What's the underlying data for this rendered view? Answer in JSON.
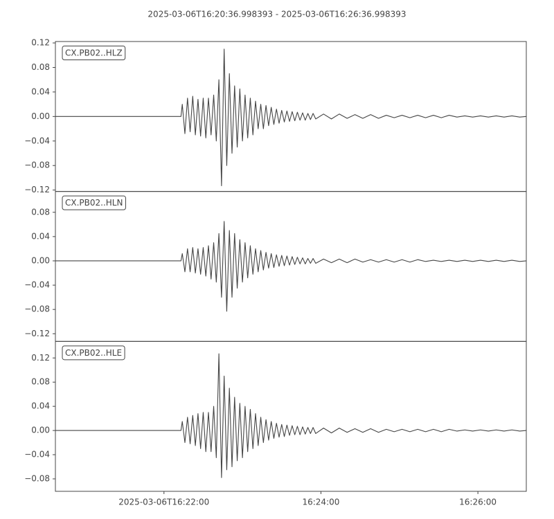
{
  "chart_data": {
    "type": "line",
    "title": "2025-03-06T16:20:36.998393  -  2025-03-06T16:26:36.998393",
    "x": [
      0,
      96,
      97,
      99,
      101,
      103,
      105,
      107,
      109,
      111,
      113,
      115,
      117,
      119,
      121,
      123,
      125,
      127,
      129,
      131,
      133,
      135,
      137,
      139,
      141,
      143,
      145,
      147,
      149,
      151,
      153,
      155,
      157,
      159,
      161,
      163,
      165,
      167,
      169,
      171,
      173,
      175,
      177,
      179,
      181,
      183,
      185,
      187,
      189,
      191,
      193,
      195,
      197,
      199,
      205,
      211,
      217,
      223,
      229,
      235,
      241,
      247,
      253,
      259,
      265,
      271,
      277,
      283,
      289,
      295,
      301,
      307,
      313,
      319,
      325,
      331,
      337,
      343,
      349,
      355,
      360
    ],
    "xlim": [
      0,
      360
    ],
    "xticks": [
      {
        "value": 83.0016,
        "label": "2025-03-06T16:22:00"
      },
      {
        "value": 203.0016,
        "label": "16:24:00"
      },
      {
        "value": 323.0016,
        "label": "16:26:00"
      }
    ],
    "series": [
      {
        "name": "CX.PB02..HLZ",
        "color": "#444444",
        "ylim": [
          -0.1223,
          0.1223
        ],
        "yticks": [
          {
            "value": 0.12,
            "label": "0.12"
          },
          {
            "value": 0.08,
            "label": "0.08"
          },
          {
            "value": 0.04,
            "label": "0.04"
          },
          {
            "value": 0,
            "label": "0.00"
          },
          {
            "value": -0.04,
            "label": "−0.04"
          },
          {
            "value": -0.08,
            "label": "−0.08"
          },
          {
            "value": -0.12,
            "label": "−0.12"
          }
        ],
        "values": [
          0,
          0,
          0.02,
          -0.028,
          0.03,
          -0.025,
          0.033,
          -0.03,
          0.028,
          -0.032,
          0.03,
          -0.035,
          0.03,
          -0.03,
          0.035,
          -0.04,
          0.06,
          -0.113,
          0.11,
          -0.08,
          0.07,
          -0.06,
          0.05,
          -0.05,
          0.045,
          -0.04,
          0.035,
          -0.035,
          0.03,
          -0.03,
          0.025,
          -0.02,
          0.02,
          -0.02,
          0.018,
          -0.015,
          0.015,
          -0.013,
          0.012,
          -0.011,
          0.01,
          -0.009,
          0.009,
          -0.008,
          0.008,
          -0.007,
          0.007,
          -0.006,
          0.006,
          -0.006,
          0.005,
          -0.005,
          0.005,
          -0.004,
          0.004,
          -0.004,
          0.004,
          -0.003,
          0.003,
          -0.003,
          0.003,
          -0.003,
          0.002,
          -0.002,
          0.002,
          -0.002,
          0.002,
          -0.002,
          0.002,
          -0.002,
          0.002,
          -0.001,
          0.001,
          -0.001,
          0.001,
          -0.001,
          0.001,
          -0.001,
          0.001,
          -0.001,
          0
        ]
      },
      {
        "name": "CX.PB02..HLN",
        "color": "#444444",
        "ylim": [
          -0.1326,
          0.1143
        ],
        "yticks": [
          {
            "value": 0.08,
            "label": "0.08"
          },
          {
            "value": 0.04,
            "label": "0.04"
          },
          {
            "value": 0,
            "label": "0.00"
          },
          {
            "value": -0.04,
            "label": "−0.04"
          },
          {
            "value": -0.08,
            "label": "−0.08"
          },
          {
            "value": -0.12,
            "label": "−0.12"
          }
        ],
        "values": [
          0,
          0,
          0.012,
          -0.018,
          0.02,
          -0.018,
          0.022,
          -0.02,
          0.02,
          -0.022,
          0.022,
          -0.025,
          0.025,
          -0.03,
          0.03,
          -0.035,
          0.045,
          -0.06,
          0.065,
          -0.083,
          0.05,
          -0.06,
          0.045,
          -0.045,
          0.035,
          -0.035,
          0.03,
          -0.028,
          0.025,
          -0.022,
          0.02,
          -0.018,
          0.017,
          -0.015,
          0.014,
          -0.012,
          0.012,
          -0.011,
          0.01,
          -0.009,
          0.009,
          -0.008,
          0.008,
          -0.007,
          0.007,
          -0.006,
          0.006,
          -0.005,
          0.005,
          -0.005,
          0.004,
          -0.004,
          0.004,
          -0.004,
          0.003,
          -0.003,
          0.003,
          -0.003,
          0.003,
          -0.002,
          0.002,
          -0.002,
          0.002,
          -0.002,
          0.002,
          -0.002,
          0.002,
          -0.001,
          0.001,
          -0.001,
          0.001,
          -0.001,
          0.001,
          -0.001,
          0.001,
          -0.001,
          0.001,
          -0.001,
          0.001,
          -0.001,
          0
        ]
      },
      {
        "name": "CX.PB02..HLE",
        "color": "#444444",
        "ylim": [
          -0.1006,
          0.1474
        ],
        "yticks": [
          {
            "value": 0.12,
            "label": "0.12"
          },
          {
            "value": 0.08,
            "label": "0.08"
          },
          {
            "value": 0.04,
            "label": "0.04"
          },
          {
            "value": 0,
            "label": "0.00"
          },
          {
            "value": -0.04,
            "label": "−0.04"
          },
          {
            "value": -0.08,
            "label": "−0.08"
          }
        ],
        "values": [
          0,
          0,
          0.015,
          -0.02,
          0.022,
          -0.022,
          0.025,
          -0.025,
          0.028,
          -0.03,
          0.03,
          -0.035,
          0.03,
          -0.035,
          0.04,
          -0.045,
          0.127,
          -0.078,
          0.09,
          -0.065,
          0.07,
          -0.06,
          0.055,
          -0.05,
          0.045,
          -0.045,
          0.04,
          -0.035,
          0.035,
          -0.03,
          0.028,
          -0.025,
          0.022,
          -0.02,
          0.018,
          -0.016,
          0.015,
          -0.013,
          0.012,
          -0.011,
          0.01,
          -0.01,
          0.009,
          -0.008,
          0.008,
          -0.007,
          0.007,
          -0.007,
          0.006,
          -0.006,
          0.005,
          -0.005,
          0.005,
          -0.005,
          0.004,
          -0.004,
          0.004,
          -0.003,
          0.003,
          -0.003,
          0.003,
          -0.003,
          0.002,
          -0.002,
          0.002,
          -0.002,
          0.002,
          -0.002,
          0.002,
          -0.002,
          0.002,
          -0.001,
          0.001,
          -0.001,
          0.001,
          -0.001,
          0.001,
          -0.001,
          0.001,
          -0.001,
          0
        ]
      }
    ]
  }
}
